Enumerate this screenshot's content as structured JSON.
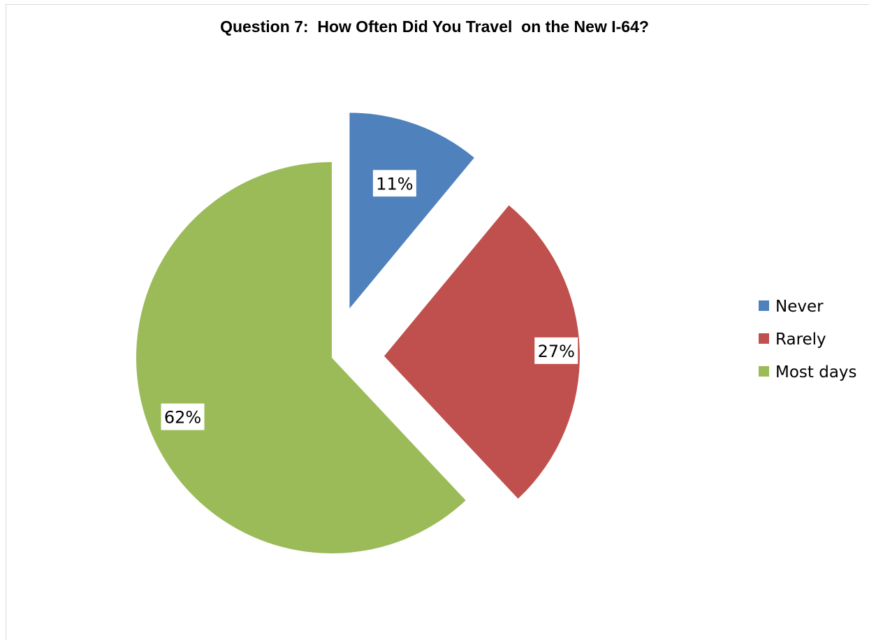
{
  "chart_data": {
    "type": "pie",
    "title": "Question 7:  How Often Did You Travel  on the New I-64?",
    "categories": [
      "Never",
      "Rarely",
      "Most days"
    ],
    "values": [
      11,
      27,
      62
    ],
    "data_labels": [
      "11%",
      "27%",
      "62%"
    ],
    "colors": [
      "#4f81bd",
      "#c0504d",
      "#9bbb59"
    ],
    "exploded": true,
    "legend": {
      "position": "right",
      "entries": [
        "Never",
        "Rarely",
        "Most days"
      ]
    }
  }
}
